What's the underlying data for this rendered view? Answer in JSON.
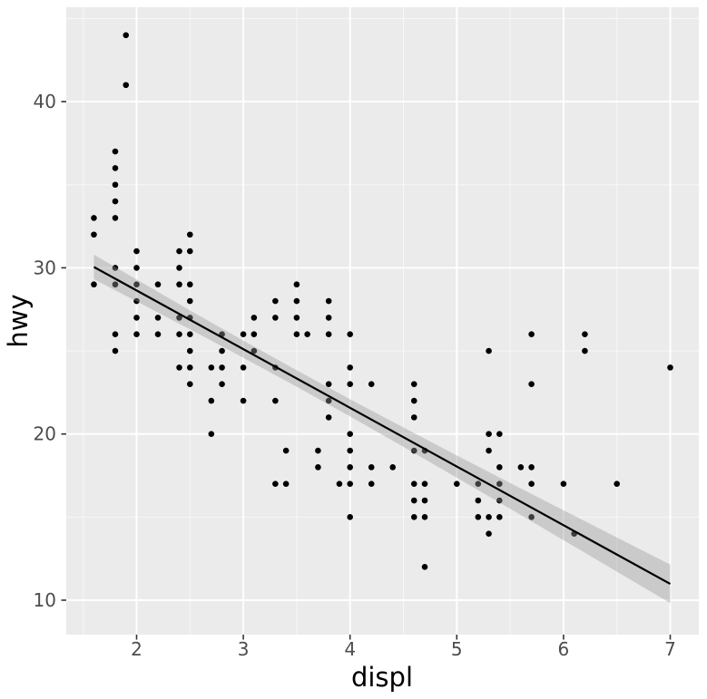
{
  "chart_data": {
    "type": "scatter",
    "title": "",
    "xlabel": "displ",
    "ylabel": "hwy",
    "x_ticks": [
      2,
      3,
      4,
      5,
      6,
      7
    ],
    "x_minor_ticks": [
      1.5,
      2.5,
      3.5,
      4.5,
      5.5,
      6.5
    ],
    "y_ticks": [
      10,
      20,
      30,
      40
    ],
    "y_minor_ticks": [
      15,
      25,
      35,
      45
    ],
    "x_tick_labels": [
      "2",
      "3",
      "4",
      "5",
      "6",
      "7"
    ],
    "y_tick_labels": [
      "10",
      "20",
      "30",
      "40"
    ],
    "xlim": [
      1.33,
      7.27
    ],
    "ylim": [
      8.1,
      45.7
    ],
    "grid": "on",
    "legend": "none",
    "points": [
      [
        1.9,
        44
      ],
      [
        1.9,
        41
      ],
      [
        1.8,
        37
      ],
      [
        1.8,
        36
      ],
      [
        1.8,
        35
      ],
      [
        1.8,
        34
      ],
      [
        1.6,
        33
      ],
      [
        1.8,
        33
      ],
      [
        1.6,
        32
      ],
      [
        2.5,
        32
      ],
      [
        2.0,
        31
      ],
      [
        2.4,
        31
      ],
      [
        2.5,
        31
      ],
      [
        1.8,
        30
      ],
      [
        2.0,
        30
      ],
      [
        2.4,
        30
      ],
      [
        1.6,
        29
      ],
      [
        1.8,
        29
      ],
      [
        2.0,
        29
      ],
      [
        2.2,
        29
      ],
      [
        2.4,
        29
      ],
      [
        2.5,
        29
      ],
      [
        3.5,
        29
      ],
      [
        2.0,
        28
      ],
      [
        2.5,
        28
      ],
      [
        3.3,
        28
      ],
      [
        3.5,
        28
      ],
      [
        3.8,
        28
      ],
      [
        2.0,
        27
      ],
      [
        2.2,
        27
      ],
      [
        2.4,
        27
      ],
      [
        2.5,
        27
      ],
      [
        3.1,
        27
      ],
      [
        3.3,
        27
      ],
      [
        3.5,
        27
      ],
      [
        3.8,
        27
      ],
      [
        1.8,
        26
      ],
      [
        2.0,
        26
      ],
      [
        2.2,
        26
      ],
      [
        2.4,
        26
      ],
      [
        2.5,
        26
      ],
      [
        2.8,
        26
      ],
      [
        3.0,
        26
      ],
      [
        3.1,
        26
      ],
      [
        3.5,
        26
      ],
      [
        3.6,
        26
      ],
      [
        3.8,
        26
      ],
      [
        4.0,
        26
      ],
      [
        5.7,
        26
      ],
      [
        6.2,
        26
      ],
      [
        1.8,
        25
      ],
      [
        2.5,
        25
      ],
      [
        2.8,
        25
      ],
      [
        3.1,
        25
      ],
      [
        5.3,
        25
      ],
      [
        6.2,
        25
      ],
      [
        2.4,
        24
      ],
      [
        2.5,
        24
      ],
      [
        2.7,
        24
      ],
      [
        2.8,
        24
      ],
      [
        3.0,
        24
      ],
      [
        3.3,
        24
      ],
      [
        4.0,
        24
      ],
      [
        7.0,
        24
      ],
      [
        2.5,
        23
      ],
      [
        2.8,
        23
      ],
      [
        3.8,
        23
      ],
      [
        4.0,
        23
      ],
      [
        4.2,
        23
      ],
      [
        4.6,
        23
      ],
      [
        5.7,
        23
      ],
      [
        2.7,
        22
      ],
      [
        3.0,
        22
      ],
      [
        3.3,
        22
      ],
      [
        3.8,
        22
      ],
      [
        4.6,
        22
      ],
      [
        3.8,
        21
      ],
      [
        4.6,
        21
      ],
      [
        2.7,
        20
      ],
      [
        4.0,
        20
      ],
      [
        5.3,
        20
      ],
      [
        5.4,
        20
      ],
      [
        3.4,
        19
      ],
      [
        3.7,
        19
      ],
      [
        4.0,
        19
      ],
      [
        4.6,
        19
      ],
      [
        4.7,
        19
      ],
      [
        5.3,
        19
      ],
      [
        3.7,
        18
      ],
      [
        4.0,
        18
      ],
      [
        4.2,
        18
      ],
      [
        4.4,
        18
      ],
      [
        5.4,
        18
      ],
      [
        5.6,
        18
      ],
      [
        5.7,
        18
      ],
      [
        3.3,
        17
      ],
      [
        3.4,
        17
      ],
      [
        3.9,
        17
      ],
      [
        4.0,
        17
      ],
      [
        4.2,
        17
      ],
      [
        4.6,
        17
      ],
      [
        4.7,
        17
      ],
      [
        5.0,
        17
      ],
      [
        5.2,
        17
      ],
      [
        5.4,
        17
      ],
      [
        5.7,
        17
      ],
      [
        6.0,
        17
      ],
      [
        6.5,
        17
      ],
      [
        4.6,
        16
      ],
      [
        4.7,
        16
      ],
      [
        5.2,
        16
      ],
      [
        5.4,
        16
      ],
      [
        4.0,
        15
      ],
      [
        4.6,
        15
      ],
      [
        4.7,
        15
      ],
      [
        5.2,
        15
      ],
      [
        5.3,
        15
      ],
      [
        5.4,
        15
      ],
      [
        5.7,
        15
      ],
      [
        5.3,
        14
      ],
      [
        6.1,
        14
      ],
      [
        4.7,
        12
      ]
    ],
    "regression_line": {
      "x": [
        1.6,
        7.0
      ],
      "y": [
        30.05,
        10.98
      ]
    },
    "confidence_band": [
      [
        1.6,
        29.31,
        30.79
      ],
      [
        2.0,
        27.98,
        29.3
      ],
      [
        2.5,
        26.3,
        27.44
      ],
      [
        3.0,
        24.59,
        25.62
      ],
      [
        3.5,
        22.85,
        23.84
      ],
      [
        4.0,
        21.06,
        22.09
      ],
      [
        4.5,
        19.23,
        20.39
      ],
      [
        5.0,
        17.37,
        18.71
      ],
      [
        5.5,
        15.5,
        17.05
      ],
      [
        6.0,
        13.61,
        15.41
      ],
      [
        6.5,
        11.72,
        13.77
      ],
      [
        7.0,
        9.82,
        12.14
      ]
    ],
    "colors": {
      "background": "#FFFFFF",
      "panel": "#EBEBEB",
      "grid_major": "#FFFFFF",
      "grid_minor": "#F5F5F5",
      "point": "#000000",
      "line": "#000000",
      "band": "#999999",
      "band_opacity": 0.4,
      "tick_label": "#4D4D4D",
      "tick_mark": "#333333",
      "axis_title": "#000000"
    }
  }
}
